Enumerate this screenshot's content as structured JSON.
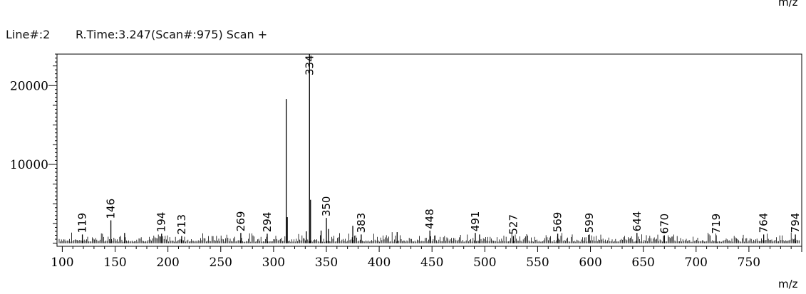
{
  "header": {
    "line": "Line#:2",
    "info": "R.Time:3.247(Scan#:975) Scan +",
    "top_unit": "m/z"
  },
  "chart_data": {
    "type": "bar",
    "xlabel": "m/z",
    "ylabel": "",
    "xlim": [
      95,
      800
    ],
    "ylim": [
      -400,
      24000
    ],
    "x_ticks": [
      100,
      150,
      200,
      250,
      300,
      350,
      400,
      450,
      500,
      550,
      600,
      650,
      700,
      750
    ],
    "x_tick_labels": [
      "100",
      "150",
      "200",
      "250",
      "300",
      "350",
      "400",
      "450",
      "500",
      "550",
      "600",
      "650",
      "700",
      "750"
    ],
    "y_ticks": [
      10000,
      20000
    ],
    "y_tick_labels": [
      "10000",
      "20000"
    ],
    "peaks": [
      {
        "mz": 312,
        "intensity": 18300
      },
      {
        "mz": 334,
        "intensity": 24000,
        "label": "334"
      },
      {
        "mz": 335,
        "intensity": 5500
      },
      {
        "mz": 313,
        "intensity": 3300
      },
      {
        "mz": 146,
        "intensity": 2900,
        "label": "146"
      },
      {
        "mz": 350,
        "intensity": 3200,
        "label": "350"
      },
      {
        "mz": 375,
        "intensity": 2200
      },
      {
        "mz": 383,
        "intensity": 1100,
        "label": "383"
      },
      {
        "mz": 119,
        "intensity": 1100,
        "label": "119"
      },
      {
        "mz": 194,
        "intensity": 1200,
        "label": "194"
      },
      {
        "mz": 213,
        "intensity": 900,
        "label": "213"
      },
      {
        "mz": 269,
        "intensity": 1300,
        "label": "269"
      },
      {
        "mz": 294,
        "intensity": 1200,
        "label": "294"
      },
      {
        "mz": 448,
        "intensity": 1600,
        "label": "448"
      },
      {
        "mz": 491,
        "intensity": 1300,
        "label": "491"
      },
      {
        "mz": 527,
        "intensity": 900,
        "label": "527"
      },
      {
        "mz": 569,
        "intensity": 1200,
        "label": "569"
      },
      {
        "mz": 599,
        "intensity": 1100,
        "label": "599"
      },
      {
        "mz": 644,
        "intensity": 1300,
        "label": "644"
      },
      {
        "mz": 670,
        "intensity": 1000,
        "label": "670"
      },
      {
        "mz": 719,
        "intensity": 1000,
        "label": "719"
      },
      {
        "mz": 764,
        "intensity": 1100,
        "label": "764"
      },
      {
        "mz": 794,
        "intensity": 1100,
        "label": "794"
      },
      {
        "mz": 159,
        "intensity": 1300
      },
      {
        "mz": 331,
        "intensity": 1500
      },
      {
        "mz": 345,
        "intensity": 1600
      },
      {
        "mz": 352,
        "intensity": 1800
      },
      {
        "mz": 417,
        "intensity": 1400
      },
      {
        "mz": 495,
        "intensity": 1100
      }
    ]
  }
}
